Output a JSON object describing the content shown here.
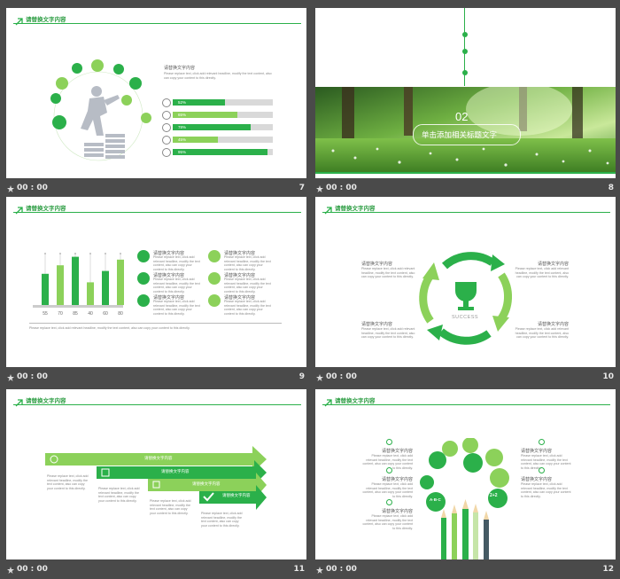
{
  "colors": {
    "green": "#2bb04a",
    "light_green": "#8cd15a",
    "dark": "#1f8a3a"
  },
  "common": {
    "header_title": "请替换文字内容",
    "placeholder_title": "请替换文字内容",
    "placeholder_body": "Please replace text, click add relevant headline, modify the text content, also can copy your content to this directly."
  },
  "slides": [
    {
      "number": "7",
      "time": "00 : 00",
      "bars": [
        {
          "value": 0.52,
          "label": "52%"
        },
        {
          "value": 0.65,
          "label": "65%"
        },
        {
          "value": 0.78,
          "label": "78%"
        },
        {
          "value": 0.45,
          "label": "45%"
        },
        {
          "value": 0.95,
          "label": "95%"
        }
      ]
    },
    {
      "number": "8",
      "time": "00 : 00",
      "section_number": "02",
      "section_title": "单击添加相关标题文字"
    },
    {
      "number": "9",
      "time": "00 : 00",
      "chart_data": {
        "type": "bar",
        "categories": [
          "55",
          "70",
          "85",
          "40",
          "60",
          "80"
        ],
        "values": [
          55,
          70,
          85,
          40,
          60,
          80
        ],
        "ylim": [
          0,
          100
        ]
      }
    },
    {
      "number": "10",
      "time": "00 : 00",
      "center_label": "SUCCESS"
    },
    {
      "number": "11",
      "time": "00 : 00"
    },
    {
      "number": "12",
      "time": "00 : 00",
      "bubble_labels": {
        "math": "2+2",
        "abc": "A·B·C"
      }
    }
  ]
}
